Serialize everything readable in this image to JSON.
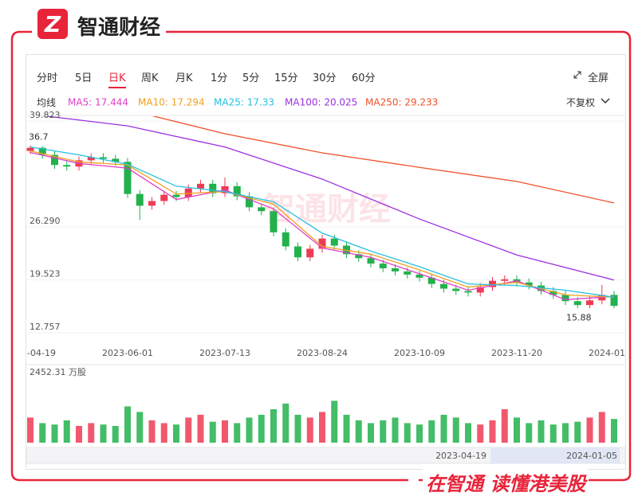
{
  "header": {
    "brand": "智通财经"
  },
  "toolbar": {
    "tabs": [
      "分时",
      "5日",
      "日K",
      "周K",
      "月K",
      "1分",
      "5分",
      "15分",
      "30分",
      "60分"
    ],
    "active": 2,
    "fullscreen": "全屏",
    "ma_label": "均线",
    "adjust": "不复权"
  },
  "footer": {
    "slogan_left": "在智通",
    "slogan_right": "读懂港美股"
  },
  "watermark": "智通财经",
  "chart_data": {
    "type": "candlestick",
    "categories": [
      "2023-04-19",
      null,
      null,
      null,
      null,
      null,
      null,
      null,
      "2023-06-01",
      null,
      null,
      null,
      null,
      null,
      null,
      null,
      "2023-07-13",
      null,
      null,
      null,
      null,
      null,
      null,
      null,
      "2023-08-24",
      null,
      null,
      null,
      null,
      null,
      null,
      null,
      "2023-10-09",
      null,
      null,
      null,
      null,
      null,
      null,
      null,
      "2023-11-20",
      null,
      null,
      null,
      null,
      null,
      null,
      null,
      "2024-01-05"
    ],
    "open": [
      36.0,
      36.4,
      35.5,
      34.2,
      34.0,
      34.8,
      35.2,
      35.0,
      34.6,
      30.5,
      29.0,
      29.6,
      30.4,
      30.1,
      31.2,
      31.8,
      30.6,
      31.5,
      30.2,
      28.8,
      28.3,
      25.6,
      23.8,
      22.4,
      23.5,
      24.8,
      23.9,
      22.8,
      22.3,
      21.6,
      21.0,
      20.6,
      20.2,
      19.8,
      19.0,
      18.4,
      18.1,
      17.9,
      18.6,
      19.4,
      19.6,
      19.2,
      18.8,
      18.1,
      17.6,
      16.8,
      16.3,
      16.9,
      17.6
    ],
    "high": [
      36.7,
      36.6,
      36.0,
      34.7,
      35.3,
      35.7,
      35.7,
      35.5,
      35.1,
      31.0,
      30.1,
      30.9,
      30.9,
      31.7,
      32.3,
      32.3,
      32.6,
      32.0,
      30.7,
      29.3,
      28.8,
      26.1,
      24.3,
      24.0,
      25.3,
      25.3,
      24.4,
      23.3,
      22.8,
      22.1,
      21.5,
      21.1,
      20.7,
      20.3,
      19.5,
      18.9,
      18.6,
      19.1,
      19.9,
      20.1,
      20.1,
      19.7,
      19.3,
      18.6,
      18.1,
      17.3,
      17.4,
      18.9,
      18.1
    ],
    "low": [
      35.6,
      35.0,
      33.7,
      33.5,
      33.5,
      34.3,
      34.5,
      34.1,
      30.0,
      27.2,
      28.5,
      29.1,
      29.6,
      29.6,
      30.7,
      30.1,
      30.1,
      29.7,
      28.3,
      27.8,
      25.1,
      23.3,
      21.9,
      21.9,
      23.0,
      23.4,
      22.3,
      21.8,
      21.1,
      20.5,
      20.1,
      19.7,
      19.3,
      18.5,
      17.9,
      17.6,
      17.4,
      17.4,
      18.1,
      18.9,
      18.7,
      18.3,
      17.6,
      17.1,
      16.3,
      15.88,
      15.9,
      16.4,
      15.9
    ],
    "close": [
      36.4,
      35.5,
      34.2,
      34.0,
      34.8,
      35.2,
      35.0,
      34.6,
      30.5,
      29.0,
      29.6,
      30.4,
      30.1,
      31.2,
      31.8,
      30.6,
      31.5,
      30.2,
      28.8,
      28.3,
      25.6,
      23.8,
      22.4,
      23.5,
      24.8,
      23.9,
      22.8,
      22.3,
      21.6,
      21.0,
      20.6,
      20.2,
      19.8,
      19.0,
      18.4,
      18.1,
      17.9,
      18.6,
      19.4,
      19.6,
      19.2,
      18.8,
      18.1,
      17.6,
      16.8,
      16.3,
      16.9,
      17.6,
      16.2
    ],
    "volume": [
      900,
      700,
      650,
      800,
      600,
      700,
      650,
      600,
      1300,
      1100,
      800,
      700,
      650,
      900,
      1000,
      750,
      800,
      700,
      900,
      1000,
      1200,
      1400,
      1000,
      900,
      1100,
      1500,
      1000,
      800,
      700,
      800,
      900,
      700,
      650,
      800,
      1000,
      900,
      700,
      650,
      800,
      1200,
      900,
      700,
      800,
      650,
      700,
      750,
      900,
      1100,
      850
    ],
    "up_color": "#ee3b55",
    "down_color": "#22b14c",
    "ylim": [
      12.757,
      39.823
    ],
    "yticks": [
      39.823,
      {
        "value": 26.29,
        "label": "26.290"
      },
      19.523,
      12.757
    ],
    "vlim": [
      0,
      2452.31
    ],
    "volume_axis_label": "2452.31 万股",
    "max_label": 36.7,
    "min_label": 15.88,
    "series": [
      {
        "name": "MA5: 17.444",
        "color": "#e040c8",
        "x": [
          0,
          4,
          8,
          12,
          16,
          20,
          24,
          28,
          32,
          36,
          40,
          44,
          48
        ],
        "values": [
          35.8,
          34.4,
          33.8,
          29.8,
          31.0,
          28.6,
          23.6,
          22.4,
          20.3,
          18.2,
          19.4,
          17.0,
          17.4
        ]
      },
      {
        "name": "MA10: 17.294",
        "color": "#f0a020",
        "x": [
          0,
          4,
          8,
          12,
          16,
          20,
          24,
          28,
          32,
          36,
          40,
          44,
          48
        ],
        "values": [
          36.0,
          34.6,
          34.2,
          30.5,
          30.8,
          29.2,
          23.8,
          22.8,
          20.8,
          18.6,
          19.2,
          17.6,
          17.3
        ]
      },
      {
        "name": "MA25: 17.33",
        "color": "#27c0e0",
        "x": [
          0,
          4,
          8,
          12,
          16,
          20,
          24,
          28,
          32,
          36,
          40,
          44,
          48
        ],
        "values": [
          36.5,
          35.5,
          34.3,
          31.5,
          30.8,
          29.5,
          25.5,
          23.2,
          21.2,
          19.0,
          18.8,
          18.2,
          17.3
        ]
      },
      {
        "name": "MA100: 20.025",
        "color": "#9b30e0",
        "x": [
          0,
          8,
          16,
          24,
          32,
          40,
          48
        ],
        "values": [
          40.7,
          39.2,
          36.5,
          32.4,
          27.3,
          22.7,
          19.5
        ]
      },
      {
        "name": "MA250: 29.233",
        "color": "#f0502a",
        "x": [
          10,
          16,
          24,
          32,
          40,
          48
        ],
        "values": [
          40.5,
          38.2,
          35.75,
          33.9,
          32.1,
          29.35
        ]
      }
    ],
    "slider_labels": [
      "2023-04-19",
      "2024-01-05"
    ]
  }
}
